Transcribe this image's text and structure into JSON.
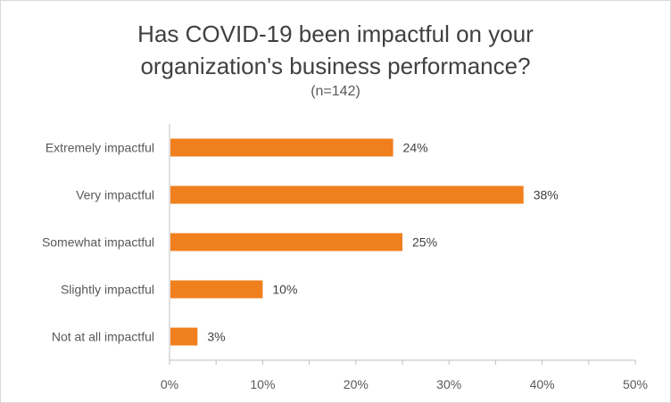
{
  "chart_data": {
    "type": "bar",
    "orientation": "horizontal",
    "title_line1": "Has COVID-19 been impactful on your",
    "title_line2": "organization's business performance?",
    "subtitle": "(n=142)",
    "categories": [
      "Extremely impactful",
      "Very impactful",
      "Somewhat impactful",
      "Slightly impactful",
      "Not at all impactful"
    ],
    "values": [
      24,
      38,
      25,
      10,
      3
    ],
    "data_labels": [
      "24%",
      "38%",
      "25%",
      "10%",
      "3%"
    ],
    "xlim": [
      0,
      50
    ],
    "x_ticks": [
      0,
      10,
      20,
      30,
      40,
      50
    ],
    "x_tick_labels": [
      "0%",
      "10%",
      "20%",
      "30%",
      "40%",
      "50%"
    ],
    "bar_color": "#f07f1e",
    "grid": false,
    "legend": "none"
  }
}
